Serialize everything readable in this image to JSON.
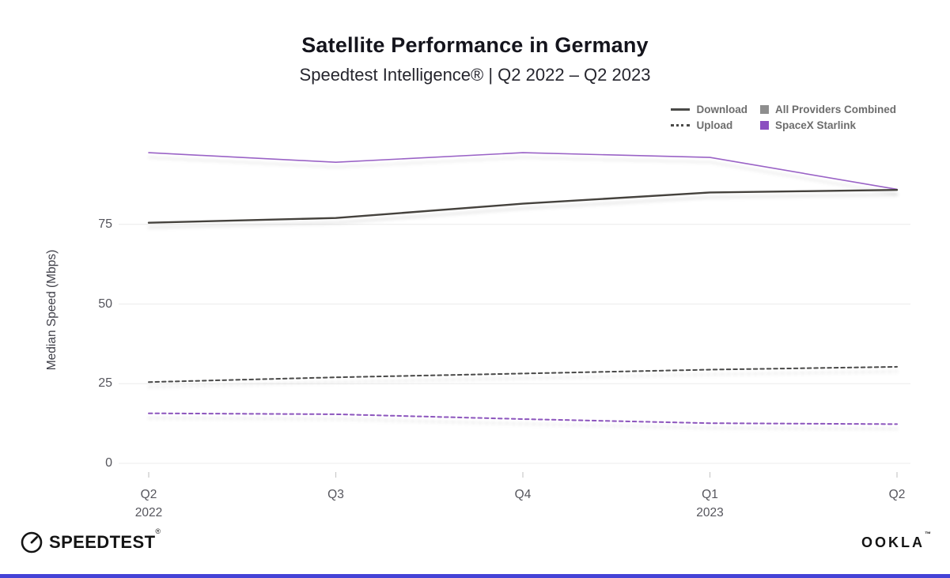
{
  "header": {
    "title": "Satellite Performance in Germany",
    "subtitle": "Speedtest Intelligence® | Q2 2022 – Q2 2023"
  },
  "legend": {
    "metrics": [
      {
        "label": "Download",
        "style": "solid",
        "color": "#4a4a48"
      },
      {
        "label": "Upload",
        "style": "dotted",
        "color": "#4a4a48"
      }
    ],
    "providers": [
      {
        "label": "All Providers Combined",
        "color": "#8e8e8e"
      },
      {
        "label": "SpaceX Starlink",
        "color": "#8b4fc0"
      }
    ]
  },
  "chart_data": {
    "type": "line",
    "x": [
      "Q2 2022",
      "Q3 2022",
      "Q4 2022",
      "Q1 2023",
      "Q2 2023"
    ],
    "ylabel": "Median Speed (Mbps)",
    "ylim": [
      0,
      100
    ],
    "yticks": [
      0,
      25,
      50,
      75
    ],
    "grid": "horizontal",
    "legend_position": "top-right",
    "series": [
      {
        "name": "SpaceX Starlink — Download",
        "provider": "SpaceX Starlink",
        "metric": "Download",
        "color": "#9a63c6",
        "dash": "solid",
        "width": 1.6,
        "values": [
          97.5,
          94.5,
          97.5,
          96,
          86
        ]
      },
      {
        "name": "All Providers Combined — Download",
        "provider": "All Providers Combined",
        "metric": "Download",
        "color": "#45423e",
        "dash": "solid",
        "width": 2.4,
        "values": [
          75.5,
          77,
          81.5,
          85,
          85.8
        ]
      },
      {
        "name": "All Providers Combined — Upload",
        "provider": "All Providers Combined",
        "metric": "Upload",
        "color": "#4a4a48",
        "dash": "dashed",
        "width": 2,
        "values": [
          25.5,
          27,
          28.2,
          29.4,
          30.3
        ]
      },
      {
        "name": "SpaceX Starlink — Upload",
        "provider": "SpaceX Starlink",
        "metric": "Upload",
        "color": "#8c55bd",
        "dash": "dashed",
        "width": 2,
        "values": [
          15.7,
          15.4,
          13.9,
          12.6,
          12.3
        ]
      }
    ]
  },
  "footer": {
    "speedtest": {
      "label": "SPEEDTEST",
      "mark": "®"
    },
    "ookla": {
      "label": "OOKLA",
      "mark": "™"
    },
    "bar_color": "#4442d6"
  }
}
